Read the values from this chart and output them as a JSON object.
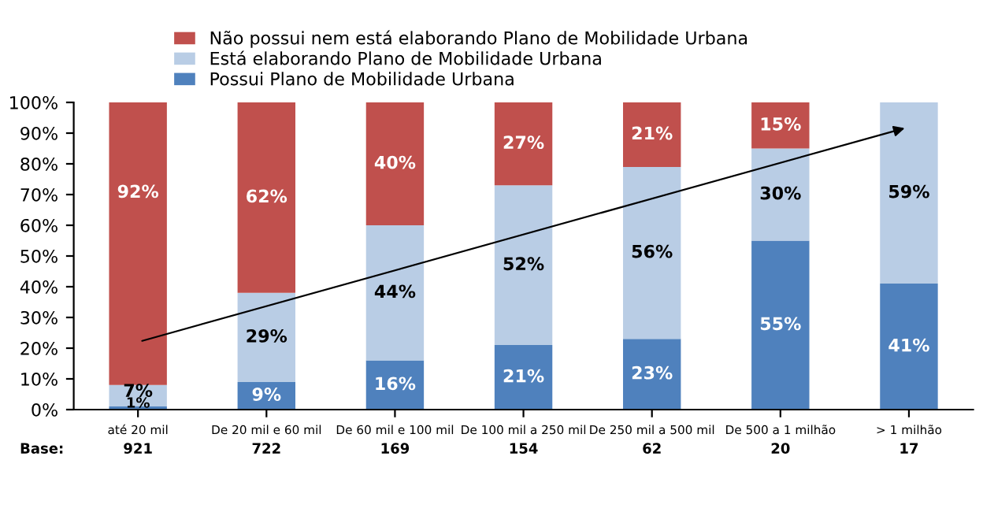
{
  "chart_data": {
    "type": "bar",
    "stacked": true,
    "categories": [
      "até 20 mil",
      "De 20 mil e 60 mil",
      "De 60 mil e 100 mil",
      "De 100 mil a 250 mil",
      "De 250 mil a 500 mil",
      "De 500 a 1 milhão",
      "> 1 milhão"
    ],
    "series": [
      {
        "name": "Possui Plano de Mobilidade Urbana",
        "color": "#4f81bd",
        "values": [
          1,
          9,
          16,
          21,
          23,
          55,
          41
        ],
        "value_labels": [
          "1%",
          "9%",
          "16%",
          "21%",
          "23%",
          "55%",
          "41%"
        ]
      },
      {
        "name": "Está elaborando Plano de Mobilidade Urbana",
        "color": "#b9cde5",
        "values": [
          7,
          29,
          44,
          52,
          56,
          30,
          59
        ],
        "value_labels": [
          "7%",
          "29%",
          "44%",
          "52%",
          "56%",
          "30%",
          "59%"
        ]
      },
      {
        "name": "Não possui nem está elaborando Plano de Mobilidade Urbana",
        "color": "#c0504d",
        "values": [
          92,
          62,
          40,
          27,
          21,
          15,
          null
        ],
        "value_labels": [
          "92%",
          "62%",
          "40%",
          "27%",
          "21%",
          "15%",
          null
        ]
      }
    ],
    "ylim": [
      0,
      100
    ],
    "yticks": [
      {
        "value": 0,
        "label": "0%"
      },
      {
        "value": 10,
        "label": "10%"
      },
      {
        "value": 20,
        "label": "20%"
      },
      {
        "value": 30,
        "label": "30%"
      },
      {
        "value": 40,
        "label": "40%"
      },
      {
        "value": 50,
        "label": "50%"
      },
      {
        "value": 60,
        "label": "60%"
      },
      {
        "value": 70,
        "label": "70%"
      },
      {
        "value": 80,
        "label": "80%"
      },
      {
        "value": 90,
        "label": "90%"
      },
      {
        "value": 100,
        "label": "100%"
      }
    ],
    "legend": "top",
    "grid": false,
    "annotations": [
      "Base:",
      "921",
      "722",
      "169",
      "154",
      "62",
      "20",
      "17"
    ]
  }
}
